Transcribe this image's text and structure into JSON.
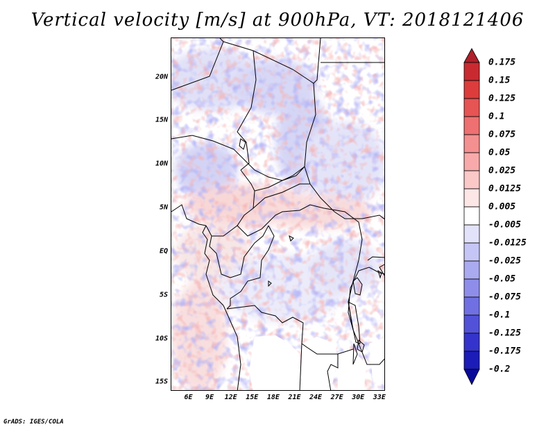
{
  "title": "Vertical velocity [m/s] at 900hPa, VT: 2018121406",
  "map": {
    "region": "Central Africa",
    "lat_labels": [
      "20N",
      "15N",
      "10N",
      "5N",
      "EQ",
      "5S",
      "10S",
      "15S"
    ],
    "lat_values": [
      20,
      15,
      10,
      5,
      0,
      -5,
      -10,
      -15
    ],
    "lon_labels": [
      "6E",
      "9E",
      "12E",
      "15E",
      "18E",
      "21E",
      "24E",
      "27E",
      "30E",
      "33E"
    ],
    "lon_values": [
      6,
      9,
      12,
      15,
      18,
      21,
      24,
      27,
      30,
      33
    ],
    "lon_range": [
      3.5,
      33.8
    ],
    "lat_range": [
      -16,
      24.5
    ]
  },
  "colorbar": {
    "levels": [
      "0.175",
      "0.15",
      "0.125",
      "0.1",
      "0.075",
      "0.05",
      "0.025",
      "0.0125",
      "0.005",
      "-0.005",
      "-0.0125",
      "-0.025",
      "-0.05",
      "-0.075",
      "-0.1",
      "-0.125",
      "-0.175",
      "-0.2"
    ],
    "colors": [
      "#b0202a",
      "#c82a30",
      "#dc3c3c",
      "#e65454",
      "#ee7070",
      "#f49090",
      "#f8aaaa",
      "#fbc8c8",
      "#fde6e6",
      "#ffffff",
      "#e2e2fb",
      "#c6c6f6",
      "#aaaaf0",
      "#8e8eea",
      "#7070e2",
      "#5252d8",
      "#3434cc",
      "#1c1cb8",
      "#0a0a9a"
    ]
  },
  "credit": "GrADS: IGES/COLA"
}
